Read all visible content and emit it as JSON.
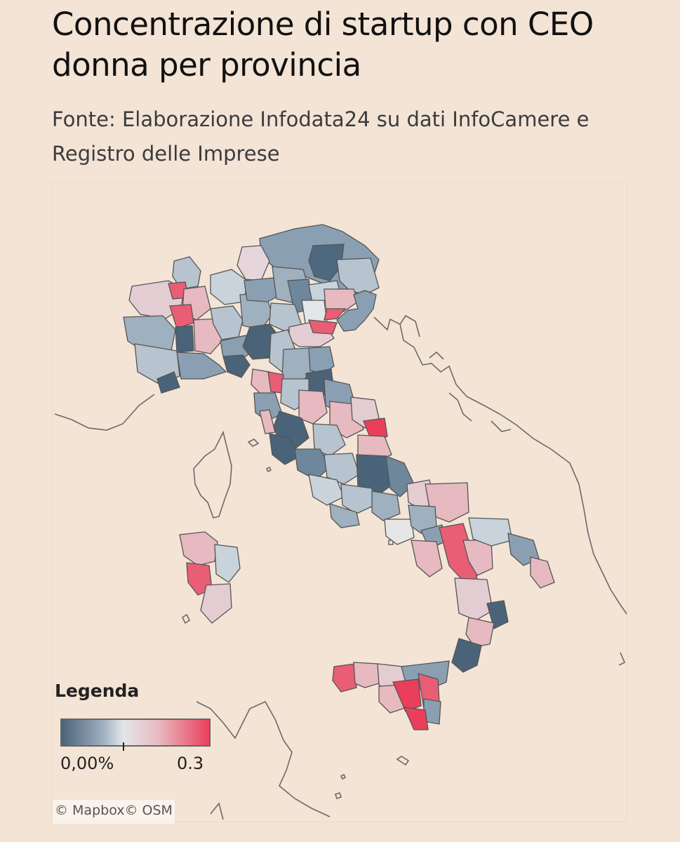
{
  "header": {
    "title": "Concentrazione di startup con CEO donna per provincia",
    "subtitle": "Fonte: Elaborazione Infodata24 su dati InfoCamere e Registro delle Imprese"
  },
  "legend": {
    "title": "Legenda",
    "min_label": "0,00%",
    "max_label": "0.3"
  },
  "map": {
    "attribution": "© Mapbox© OSM",
    "colors": {
      "background": "#f3e4d6",
      "low": "#4b6378",
      "mid": "#e4e6e8",
      "high": "#ea3f5b",
      "border": "#555555"
    }
  }
}
